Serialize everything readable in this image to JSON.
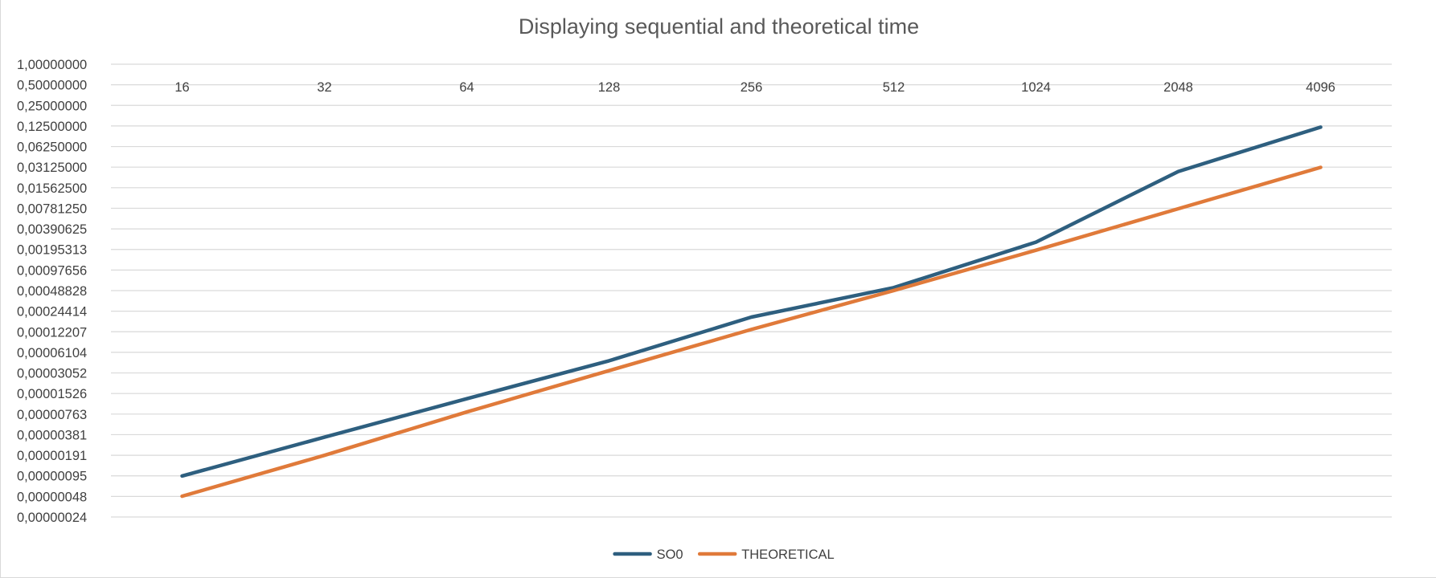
{
  "chart_data": {
    "type": "line",
    "title": "Displaying sequential and theoretical time",
    "xlabel": "",
    "ylabel": "",
    "categories": [
      "16",
      "32",
      "64",
      "128",
      "256",
      "512",
      "1024",
      "2048",
      "4096"
    ],
    "y_scale": "log2",
    "y_tick_labels": [
      "1,00000000",
      "0,50000000",
      "0,25000000",
      "0,12500000",
      "0,06250000",
      "0,03125000",
      "0,01562500",
      "0,00781250",
      "0,00390625",
      "0,00195313",
      "0,00097656",
      "0,00048828",
      "0,00024414",
      "0,00012207",
      "0,00006104",
      "0,00003052",
      "0,00001526",
      "0,00000763",
      "0,00000381",
      "0,00000191",
      "0,00000095",
      "0,00000048",
      "0,00000024"
    ],
    "ylim": [
      2.38e-07,
      1.0
    ],
    "x_axis_position": "top",
    "grid": true,
    "legend_position": "bottom",
    "series": [
      {
        "name": "SO0",
        "color": "#2e5f7f",
        "values": [
          9.5e-07,
          3.5e-06,
          1.28e-05,
          4.6e-05,
          0.0002,
          0.00054,
          0.0025,
          0.027,
          0.12
        ]
      },
      {
        "name": "THEORETICAL",
        "color": "#e07a3a",
        "values": [
          4.8e-07,
          1.9e-06,
          8.2e-06,
          3.3e-05,
          0.000132,
          0.00049,
          0.0019,
          0.0077,
          0.031
        ]
      }
    ]
  }
}
